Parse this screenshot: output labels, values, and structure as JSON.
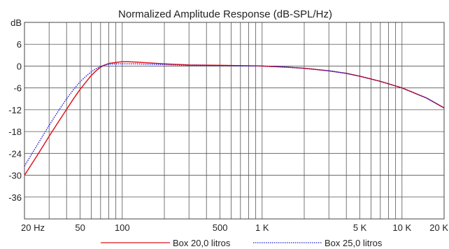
{
  "chart_data": {
    "type": "line",
    "title": "Normalized Amplitude Response (dB-SPL/Hz)",
    "y_unit_label": "dB",
    "x_scale": "log",
    "xlim": [
      20,
      20000
    ],
    "ylim": [
      -42,
      12
    ],
    "grid": true,
    "legend_position": "bottom-center",
    "x_ticks": [
      {
        "value": 20,
        "label": "20 Hz"
      },
      {
        "value": 50,
        "label": "50"
      },
      {
        "value": 100,
        "label": "100"
      },
      {
        "value": 500,
        "label": "500"
      },
      {
        "value": 1000,
        "label": "1 K"
      },
      {
        "value": 5000,
        "label": "5 K"
      },
      {
        "value": 10000,
        "label": "10 K"
      },
      {
        "value": 20000,
        "label": "20 K"
      }
    ],
    "y_ticks": [
      {
        "value": 6,
        "label": "6"
      },
      {
        "value": 0,
        "label": "0"
      },
      {
        "value": -6,
        "label": "-6"
      },
      {
        "value": -12,
        "label": "-12"
      },
      {
        "value": -18,
        "label": "-18"
      },
      {
        "value": -24,
        "label": "-24"
      },
      {
        "value": -30,
        "label": "-30"
      },
      {
        "value": -36,
        "label": "-36"
      }
    ],
    "series": [
      {
        "name": "Box 20,0 litros",
        "color": "#e0141e",
        "style": "solid",
        "x": [
          20,
          25,
          30,
          35,
          40,
          45,
          50,
          55,
          60,
          65,
          70,
          75,
          80,
          90,
          100,
          110,
          125,
          150,
          200,
          300,
          500,
          1000,
          1500,
          2000,
          3000,
          4000,
          5000,
          7000,
          10000,
          15000,
          20000
        ],
        "y": [
          -30.0,
          -24.2,
          -19.3,
          -15.3,
          -11.9,
          -8.9,
          -6.4,
          -4.4,
          -2.6,
          -1.3,
          -0.3,
          0.3,
          0.7,
          1.0,
          1.2,
          1.2,
          1.1,
          0.9,
          0.6,
          0.3,
          0.2,
          0.0,
          -0.3,
          -0.6,
          -1.3,
          -2.0,
          -2.8,
          -4.2,
          -6.0,
          -8.8,
          -11.5
        ]
      },
      {
        "name": "Box 25,0 litros",
        "color": "#1a1acc",
        "style": "dotted",
        "x": [
          20,
          25,
          30,
          35,
          40,
          45,
          50,
          55,
          60,
          65,
          70,
          75,
          80,
          90,
          100,
          110,
          125,
          150,
          200,
          300,
          500,
          1000,
          1500,
          2000,
          3000,
          4000,
          5000,
          7000,
          10000,
          15000,
          20000
        ],
        "y": [
          -27.5,
          -21.3,
          -16.3,
          -12.3,
          -9.0,
          -6.4,
          -4.3,
          -2.8,
          -1.6,
          -0.7,
          -0.1,
          0.3,
          0.5,
          0.6,
          0.6,
          0.6,
          0.6,
          0.5,
          0.4,
          0.2,
          0.1,
          0.0,
          -0.3,
          -0.6,
          -1.3,
          -2.0,
          -2.8,
          -4.2,
          -6.0,
          -8.8,
          -11.5
        ]
      }
    ]
  }
}
